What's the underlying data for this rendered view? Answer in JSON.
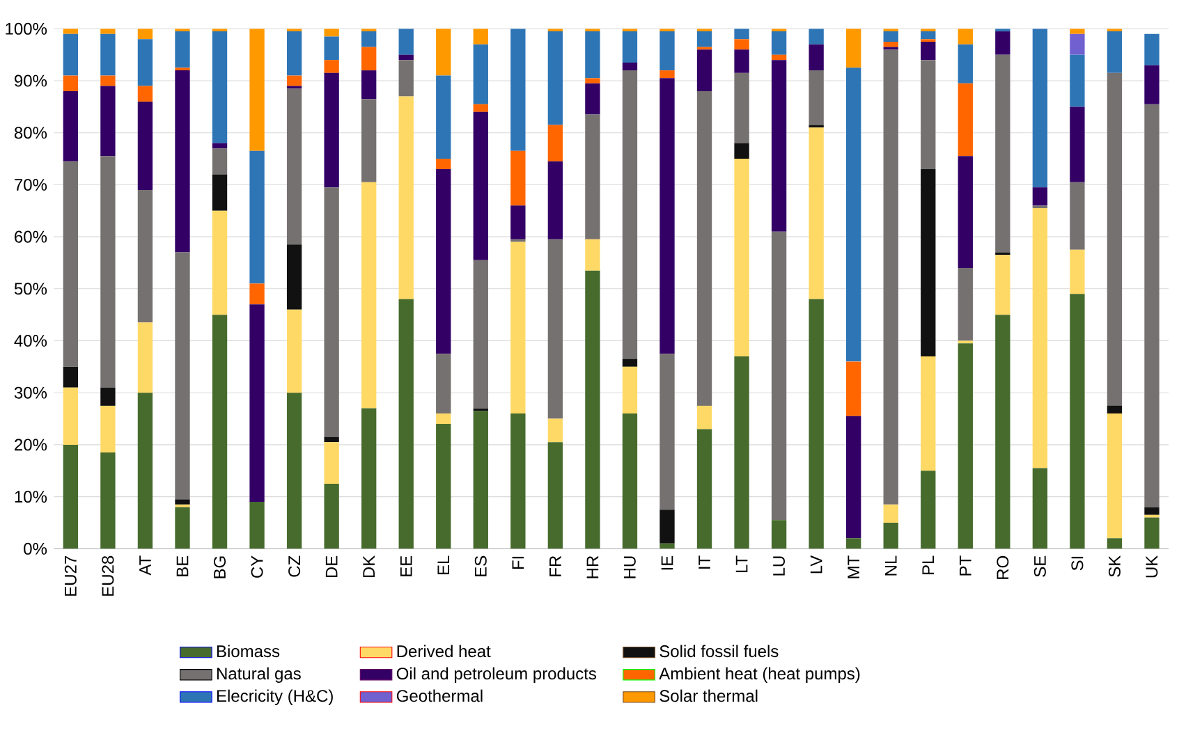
{
  "chart_data": {
    "type": "bar",
    "stacked": true,
    "categories": [
      "EU27",
      "EU28",
      "AT",
      "BE",
      "BG",
      "CY",
      "CZ",
      "DE",
      "DK",
      "EE",
      "EL",
      "ES",
      "FI",
      "FR",
      "HR",
      "HU",
      "IE",
      "IT",
      "LT",
      "LU",
      "LV",
      "MT",
      "NL",
      "PL",
      "PT",
      "RO",
      "SE",
      "SI",
      "SK",
      "UK"
    ],
    "series": [
      {
        "name": "Biomass",
        "color": "#466b2d",
        "values": [
          20,
          18.5,
          30,
          8,
          45,
          9,
          30,
          12.5,
          27,
          48,
          24,
          26.5,
          26,
          20.5,
          53.5,
          26,
          1,
          23,
          37,
          5.5,
          48,
          2,
          5,
          15,
          39.5,
          45,
          15.5,
          49,
          2,
          6
        ]
      },
      {
        "name": "Derived heat",
        "color": "#ffd966",
        "values": [
          11,
          9,
          13.5,
          0.5,
          20,
          0,
          16,
          8,
          43.5,
          39,
          2,
          0,
          33,
          4.5,
          6,
          9,
          0,
          4.5,
          38,
          0,
          33,
          0,
          3.5,
          22,
          0.5,
          11.5,
          50,
          8.5,
          24,
          0.5
        ]
      },
      {
        "name": "Solid fossil fuels",
        "color": "#111111",
        "values": [
          4,
          3.5,
          0,
          1,
          7,
          0,
          12.5,
          1,
          0,
          0,
          0,
          0.5,
          0,
          0,
          0,
          1.5,
          6.5,
          0,
          3,
          0,
          0.5,
          0,
          0,
          36,
          0,
          0.5,
          0,
          0,
          1.5,
          1.5
        ]
      },
      {
        "name": "Natural gas",
        "color": "#767171",
        "values": [
          39.5,
          44.5,
          25.5,
          47.5,
          5,
          0,
          30,
          48,
          16,
          7,
          11.5,
          28.5,
          0.5,
          34.5,
          24,
          55.5,
          30,
          60.5,
          13.5,
          55.5,
          10.5,
          0,
          87.5,
          21,
          14,
          38,
          0.5,
          13,
          64,
          77.5
        ]
      },
      {
        "name": "Oil and petroleum products",
        "color": "#330066",
        "values": [
          13.5,
          13.5,
          17,
          35,
          1,
          38,
          0.5,
          22,
          5.5,
          1,
          35.5,
          28.5,
          6.5,
          15,
          6,
          1.5,
          53,
          8,
          4.5,
          33,
          5,
          23.5,
          0.5,
          3.5,
          21.5,
          4.5,
          3.5,
          14.5,
          0,
          7.5
        ]
      },
      {
        "name": "Ambient heat (heat pumps)",
        "color": "#ff6600",
        "values": [
          3,
          2,
          3,
          0.5,
          0,
          4,
          2,
          2.5,
          4.5,
          0,
          2,
          1.5,
          10.5,
          7,
          1,
          0,
          1.5,
          0.5,
          2,
          1,
          0,
          10.5,
          1,
          0.5,
          14,
          0,
          0,
          0,
          0,
          0
        ]
      },
      {
        "name": "Elecricity (H&C)",
        "color": "#2e75b6",
        "values": [
          8,
          8,
          9,
          7,
          21.5,
          25.5,
          8.5,
          4.5,
          3,
          5,
          16,
          11.5,
          23.5,
          18,
          9,
          6,
          7.5,
          3,
          2,
          4.5,
          3,
          56.5,
          2,
          1.5,
          7.5,
          0.5,
          30.5,
          10,
          8,
          6
        ]
      },
      {
        "name": "Geothermal",
        "color": "#7060d0",
        "values": [
          0,
          0,
          0,
          0,
          0,
          0,
          0,
          0,
          0,
          0,
          0,
          0,
          0,
          0,
          0,
          0,
          0,
          0,
          0,
          0,
          0,
          0,
          0,
          0,
          0,
          0,
          0,
          4,
          0,
          0
        ]
      },
      {
        "name": "Solar thermal",
        "color": "#ff9900",
        "values": [
          1,
          1,
          2,
          0.5,
          0.5,
          23.5,
          0.5,
          1.5,
          0.5,
          0,
          9,
          3,
          0,
          0.5,
          0.5,
          0.5,
          0.5,
          0.5,
          0,
          0.5,
          0,
          7.5,
          0.5,
          0.5,
          3,
          0,
          0,
          1,
          0.5,
          0
        ]
      }
    ],
    "ylim": [
      0,
      100
    ],
    "yticks": [
      {
        "value": 0,
        "label": "0%"
      },
      {
        "value": 10,
        "label": "10%"
      },
      {
        "value": 20,
        "label": "20%"
      },
      {
        "value": 30,
        "label": "30%"
      },
      {
        "value": 40,
        "label": "40%"
      },
      {
        "value": 50,
        "label": "50%"
      },
      {
        "value": 60,
        "label": "60%"
      },
      {
        "value": 70,
        "label": "70%"
      },
      {
        "value": 80,
        "label": "80%"
      },
      {
        "value": 90,
        "label": "90%"
      },
      {
        "value": 100,
        "label": "100%"
      }
    ],
    "grid": "y",
    "legend": "bottom"
  }
}
